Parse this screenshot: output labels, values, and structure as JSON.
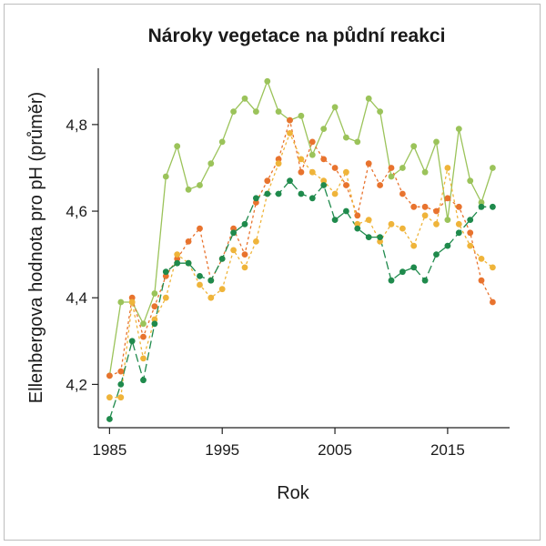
{
  "chart_data": {
    "type": "line",
    "title": "Nároky vegetace na půdní reakci",
    "xlabel": "Rok",
    "ylabel": "Ellenbergova hodnota pro pH (průměr)",
    "xlim": [
      1984,
      2020.5
    ],
    "ylim": [
      4.1,
      4.93
    ],
    "x_ticks": [
      1985,
      1995,
      2005,
      2015
    ],
    "x_tick_labels": [
      "1985",
      "1995",
      "2005",
      "2015"
    ],
    "y_ticks": [
      4.2,
      4.4,
      4.6,
      4.8
    ],
    "y_tick_labels": [
      "4,2",
      "4,4",
      "4,6",
      "4,8"
    ],
    "grid": false,
    "x": [
      1985,
      1986,
      1987,
      1988,
      1989,
      1990,
      1991,
      1992,
      1993,
      1994,
      1995,
      1996,
      1997,
      1998,
      1999,
      2000,
      2001,
      2002,
      2003,
      2004,
      2005,
      2006,
      2007,
      2008,
      2009,
      2010,
      2011,
      2012,
      2013,
      2014,
      2015,
      2016,
      2017,
      2018,
      2019
    ],
    "series": [
      {
        "color": "#9bc35a",
        "dash": "none",
        "values": [
          4.22,
          4.39,
          4.39,
          4.34,
          4.41,
          4.68,
          4.75,
          4.65,
          4.66,
          4.71,
          4.76,
          4.83,
          4.86,
          4.83,
          4.9,
          4.83,
          4.81,
          4.82,
          4.73,
          4.79,
          4.84,
          4.77,
          4.76,
          4.86,
          4.83,
          4.68,
          4.7,
          4.75,
          4.69,
          4.76,
          4.58,
          4.79,
          4.67,
          4.62,
          4.7
        ]
      },
      {
        "color": "#e8732e",
        "dash": "3,3",
        "values": [
          4.22,
          4.23,
          4.4,
          4.31,
          4.38,
          4.45,
          4.49,
          4.53,
          4.56,
          4.44,
          4.49,
          4.56,
          4.5,
          4.62,
          4.67,
          4.72,
          4.81,
          4.69,
          4.76,
          4.72,
          4.7,
          4.66,
          4.59,
          4.71,
          4.66,
          4.7,
          4.64,
          4.61,
          4.61,
          4.6,
          4.63,
          4.61,
          4.55,
          4.44,
          4.39
        ]
      },
      {
        "color": "#efb43a",
        "dash": "3,3",
        "values": [
          4.17,
          4.17,
          4.39,
          4.26,
          4.35,
          4.4,
          4.5,
          4.48,
          4.43,
          4.4,
          4.42,
          4.51,
          4.47,
          4.53,
          4.64,
          4.71,
          4.78,
          4.72,
          4.69,
          4.67,
          4.64,
          4.69,
          4.57,
          4.58,
          4.53,
          4.57,
          4.56,
          4.52,
          4.59,
          4.57,
          4.7,
          4.57,
          4.52,
          4.49,
          4.47
        ]
      },
      {
        "color": "#1f8a4c",
        "dash": "9,4",
        "values": [
          4.12,
          4.2,
          4.3,
          4.21,
          4.34,
          4.46,
          4.48,
          4.48,
          4.45,
          4.44,
          4.49,
          4.55,
          4.57,
          4.63,
          4.64,
          4.64,
          4.67,
          4.64,
          4.63,
          4.66,
          4.58,
          4.6,
          4.56,
          4.54,
          4.54,
          4.44,
          4.46,
          4.47,
          4.44,
          4.5,
          4.52,
          4.55,
          4.58,
          4.61,
          4.61
        ]
      }
    ]
  }
}
